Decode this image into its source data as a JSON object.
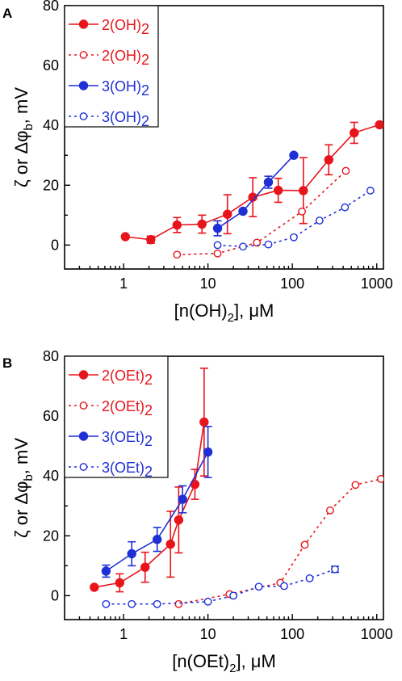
{
  "chart_data": [
    {
      "panel": "A",
      "type": "line",
      "xlabel": "[n(OH)",
      "xlabel_sub": "2",
      "xlabel_tail": "], μM",
      "ylabel": "ζ or Δφ",
      "ylabel_sub": "b",
      "ylabel_tail": ", mV",
      "x_scale": "log",
      "xlim": [
        0.2,
        1200
      ],
      "ylim": [
        -8,
        80
      ],
      "x_ticks": [
        1,
        10,
        100,
        1000
      ],
      "x_tick_labels": [
        "1",
        "10",
        "100",
        "1000"
      ],
      "y_ticks": [
        0,
        20,
        40,
        60,
        80
      ],
      "y_tick_labels": [
        "0",
        "20",
        "40",
        "60",
        "80"
      ],
      "legend_position": "top-left",
      "series": [
        {
          "name": "2(OH)",
          "name_sub": "2",
          "color": "#e8141c",
          "filled": true,
          "dashed": false,
          "x": [
            1.05,
            2.1,
            4.3,
            8.5,
            17,
            34,
            68,
            135,
            270,
            540,
            1080
          ],
          "y": [
            2.8,
            1.8,
            6.7,
            7.0,
            10.3,
            16.0,
            18.3,
            18.2,
            28.5,
            37.5,
            40.2
          ],
          "err": [
            0,
            1.2,
            2.5,
            3.0,
            6.5,
            6.5,
            4.0,
            11.0,
            5.0,
            3.5,
            0
          ]
        },
        {
          "name": "2(OH)",
          "name_sub": "2",
          "color": "#e8141c",
          "filled": false,
          "dashed": true,
          "x": [
            4.3,
            13,
            38,
            130,
            430
          ],
          "y": [
            -3.2,
            -2.8,
            0.8,
            11.2,
            24.8
          ],
          "err": [
            0,
            0,
            0,
            0,
            0
          ]
        },
        {
          "name": "3(OH)",
          "name_sub": "2",
          "color": "#1f2fd6",
          "filled": true,
          "dashed": false,
          "x": [
            13,
            26,
            52,
            104
          ],
          "y": [
            5.6,
            11.3,
            21.0,
            30.0
          ],
          "err": [
            2.5,
            0,
            2.0,
            0
          ]
        },
        {
          "name": "3(OH)",
          "name_sub": "2",
          "color": "#1f2fd6",
          "filled": false,
          "dashed": true,
          "x": [
            13,
            26,
            52,
            104,
            210,
            420,
            840
          ],
          "y": [
            0.0,
            -0.5,
            0.2,
            2.6,
            8.2,
            12.6,
            18.2
          ],
          "err": [
            0,
            0,
            0,
            0,
            0,
            0,
            0
          ]
        }
      ]
    },
    {
      "panel": "B",
      "type": "line",
      "xlabel": "[n(OEt)",
      "xlabel_sub": "2",
      "xlabel_tail": "], μM",
      "ylabel": "ζ or Δφ",
      "ylabel_sub": "b",
      "ylabel_tail": ", mV",
      "x_scale": "log",
      "xlim": [
        0.2,
        1200
      ],
      "ylim": [
        -8,
        80
      ],
      "x_ticks": [
        1,
        10,
        100,
        1000
      ],
      "x_tick_labels": [
        "1",
        "10",
        "100",
        "1000"
      ],
      "y_ticks": [
        0,
        20,
        40,
        60,
        80
      ],
      "y_tick_labels": [
        "0",
        "20",
        "40",
        "60",
        "80"
      ],
      "legend_position": "top-left",
      "series": [
        {
          "name": "2(OEt)",
          "name_sub": "2",
          "color": "#e8141c",
          "filled": true,
          "dashed": false,
          "x": [
            0.45,
            0.9,
            1.8,
            3.6,
            4.5,
            7,
            9
          ],
          "y": [
            2.8,
            4.3,
            9.5,
            17.2,
            25.3,
            37.2,
            58.0
          ],
          "err": [
            0,
            3.0,
            5.0,
            11.0,
            11.0,
            5.0,
            18.0
          ]
        },
        {
          "name": "2(OEt)",
          "name_sub": "2",
          "color": "#e8141c",
          "filled": false,
          "dashed": true,
          "x": [
            4.5,
            18,
            72,
            140,
            280,
            560,
            1120
          ],
          "y": [
            -2.8,
            0.5,
            4.3,
            17.0,
            28.5,
            37.0,
            39.0
          ],
          "err": [
            0,
            0,
            0,
            0,
            0,
            0,
            0
          ]
        },
        {
          "name": "3(OEt)",
          "name_sub": "2",
          "color": "#1f2fd6",
          "filled": true,
          "dashed": false,
          "x": [
            0.62,
            1.25,
            2.5,
            5,
            10
          ],
          "y": [
            8.2,
            14.0,
            18.8,
            32.2,
            48.0
          ],
          "err": [
            2.0,
            4.0,
            4.0,
            4.5,
            8.5
          ]
        },
        {
          "name": "3(OEt)",
          "name_sub": "2",
          "color": "#1f2fd6",
          "filled": false,
          "dashed": true,
          "x": [
            0.62,
            1.25,
            2.5,
            10,
            20,
            40,
            80,
            160,
            320
          ],
          "y": [
            -2.8,
            -2.8,
            -2.8,
            -2.0,
            0.0,
            3.0,
            3.2,
            5.8,
            8.8
          ],
          "err": [
            0,
            0,
            0,
            0,
            0,
            0,
            0,
            0,
            1.0
          ]
        }
      ]
    }
  ]
}
